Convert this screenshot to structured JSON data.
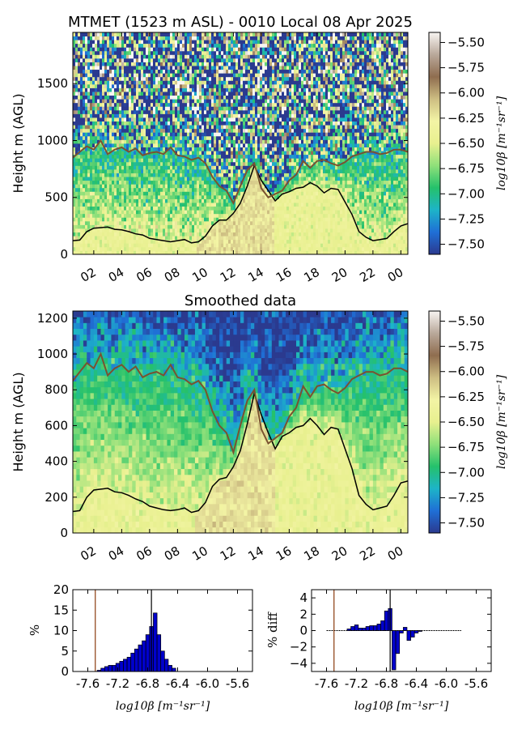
{
  "colors": {
    "colormap": [
      "#2b3a8f",
      "#1f6fd6",
      "#1db4c8",
      "#25c16b",
      "#8fe07a",
      "#e8f08f",
      "#f3f4a5",
      "#cdbd82",
      "#8f6d4f",
      "#b9a89a",
      "#f8f5f2"
    ],
    "mixing_line": "#7a5230",
    "boundary_line": "#000000",
    "hist_fill": "#0000cc",
    "hist_edge": "#000000",
    "marker_brown": "#8b3a0e",
    "marker_black": "#000000"
  },
  "chart_data": [
    {
      "type": "heatmap",
      "title": "MTMET (1523 m ASL) - 0010 Local 08 Apr 2025",
      "ylabel": "Height m (AGL)",
      "xticks": [
        "02",
        "04",
        "06",
        "08",
        "10",
        "12",
        "14",
        "16",
        "18",
        "20",
        "22",
        "00"
      ],
      "xlim": [
        0.5,
        24.5
      ],
      "ylim": [
        0,
        1950
      ],
      "yticks": [
        "0",
        "500",
        "1000",
        "1500"
      ],
      "colorbar_label": "log10β [m⁻¹sr⁻¹]",
      "colorbar_ticks": [
        "−5.50",
        "−5.75",
        "−6.00",
        "−6.25",
        "−6.50",
        "−6.75",
        "−7.00",
        "−7.25",
        "−7.50"
      ],
      "clim": [
        -7.6,
        -5.4
      ],
      "series": [
        {
          "hours": [
            0.5,
            1.0,
            1.5,
            2.0,
            2.5,
            3.0,
            3.5,
            4.0,
            4.5,
            5.0,
            5.5,
            6.0,
            6.5,
            7.0,
            7.5,
            8.0,
            8.5,
            9.0,
            9.5,
            10.0,
            10.5,
            11.0,
            11.5,
            12.0,
            12.5,
            13.0,
            13.5,
            14.0,
            14.5,
            15.0,
            15.5,
            16.0,
            16.5,
            17.0,
            17.5,
            18.0,
            18.5,
            19.0,
            19.5,
            20.0,
            20.5,
            21.0,
            21.5,
            22.0,
            22.5,
            23.0,
            23.5,
            24.0,
            24.5
          ],
          "values": [
            120,
            125,
            200,
            230,
            235,
            240,
            220,
            215,
            200,
            180,
            170,
            140,
            130,
            120,
            110,
            120,
            130,
            100,
            110,
            160,
            250,
            300,
            300,
            360,
            450,
            600,
            780,
            650,
            560,
            470,
            530,
            550,
            580,
            590,
            630,
            600,
            540,
            580,
            570,
            460,
            350,
            200,
            150,
            120,
            130,
            140,
            200,
            250,
            270
          ]
        },
        {
          "hours": [
            0.5,
            1.0,
            1.5,
            2.0,
            2.5,
            3.0,
            3.5,
            4.0,
            4.5,
            5.0,
            5.5,
            6.0,
            6.5,
            7.0,
            7.5,
            8.0,
            8.5,
            9.0,
            9.5,
            10.0,
            10.5,
            11.0,
            11.5,
            12.0,
            12.5,
            13.0,
            13.5,
            14.0,
            14.5,
            15.0,
            15.5,
            16.0,
            16.5,
            17.0,
            17.5,
            18.0,
            18.5,
            19.0,
            19.5,
            20.0,
            20.5,
            21.0,
            21.5,
            22.0,
            22.5,
            23.0,
            23.5,
            24.0,
            24.5
          ],
          "values": [
            850,
            900,
            950,
            920,
            1000,
            880,
            920,
            940,
            900,
            930,
            870,
            890,
            900,
            880,
            940,
            870,
            860,
            830,
            850,
            800,
            680,
            600,
            560,
            450,
            600,
            740,
            800,
            580,
            500,
            530,
            560,
            650,
            700,
            820,
            760,
            820,
            830,
            800,
            780,
            810,
            860,
            880,
            900,
            900,
            880,
            890,
            920,
            920,
            900
          ]
        }
      ]
    },
    {
      "type": "heatmap",
      "title": "Smoothed data",
      "ylabel": "Height m (AGL)",
      "xticks": [
        "02",
        "04",
        "06",
        "08",
        "10",
        "12",
        "14",
        "16",
        "18",
        "20",
        "22",
        "00"
      ],
      "xlim": [
        0.5,
        24.5
      ],
      "ylim": [
        0,
        1240
      ],
      "yticks": [
        "0",
        "200",
        "400",
        "600",
        "800",
        "1000",
        "1200"
      ],
      "colorbar_label": "log10β [m⁻¹sr⁻¹]",
      "colorbar_ticks": [
        "−5.50",
        "−5.75",
        "−6.00",
        "−6.25",
        "−6.50",
        "−6.75",
        "−7.00",
        "−7.25",
        "−7.50"
      ],
      "clim": [
        -7.6,
        -5.4
      ],
      "series": [
        {
          "hours": [
            0.5,
            1.0,
            1.5,
            2.0,
            2.5,
            3.0,
            3.5,
            4.0,
            4.5,
            5.0,
            5.5,
            6.0,
            6.5,
            7.0,
            7.5,
            8.0,
            8.5,
            9.0,
            9.5,
            10.0,
            10.5,
            11.0,
            11.5,
            12.0,
            12.5,
            13.0,
            13.5,
            14.0,
            14.5,
            15.0,
            15.5,
            16.0,
            16.5,
            17.0,
            17.5,
            18.0,
            18.5,
            19.0,
            19.5,
            20.0,
            20.5,
            21.0,
            21.5,
            22.0,
            22.5,
            23.0,
            23.5,
            24.0,
            24.5
          ],
          "values": [
            120,
            125,
            200,
            240,
            245,
            250,
            230,
            225,
            210,
            190,
            175,
            150,
            140,
            130,
            125,
            130,
            140,
            115,
            125,
            170,
            260,
            300,
            310,
            370,
            460,
            610,
            780,
            660,
            560,
            470,
            540,
            560,
            590,
            600,
            640,
            600,
            550,
            590,
            580,
            470,
            360,
            210,
            160,
            130,
            140,
            150,
            210,
            280,
            290
          ]
        },
        {
          "hours": [
            0.5,
            1.0,
            1.5,
            2.0,
            2.5,
            3.0,
            3.5,
            4.0,
            4.5,
            5.0,
            5.5,
            6.0,
            6.5,
            7.0,
            7.5,
            8.0,
            8.5,
            9.0,
            9.5,
            10.0,
            10.5,
            11.0,
            11.5,
            12.0,
            12.5,
            13.0,
            13.5,
            14.0,
            14.5,
            15.0,
            15.5,
            16.0,
            16.5,
            17.0,
            17.5,
            18.0,
            18.5,
            19.0,
            19.5,
            20.0,
            20.5,
            21.0,
            21.5,
            22.0,
            22.5,
            23.0,
            23.5,
            24.0,
            24.5
          ],
          "values": [
            850,
            900,
            950,
            920,
            1000,
            880,
            920,
            940,
            900,
            930,
            870,
            890,
            900,
            880,
            940,
            870,
            860,
            830,
            850,
            800,
            680,
            600,
            560,
            450,
            600,
            740,
            800,
            580,
            500,
            530,
            560,
            650,
            700,
            820,
            760,
            820,
            830,
            800,
            780,
            810,
            860,
            880,
            900,
            900,
            880,
            890,
            920,
            920,
            900
          ]
        }
      ]
    },
    {
      "type": "bar",
      "title": "",
      "ylabel": "%",
      "xlabel": "log10β [m⁻¹sr⁻¹]",
      "xlim": [
        -7.8,
        -5.4
      ],
      "ylim": [
        0,
        20
      ],
      "xticks": [
        "-7.6",
        "-7.2",
        "-6.8",
        "-6.4",
        "-6.0",
        "-5.6"
      ],
      "yticks": [
        "0",
        "5",
        "10",
        "15",
        "20"
      ],
      "bin_centers": [
        -7.45,
        -7.4,
        -7.35,
        -7.3,
        -7.25,
        -7.2,
        -7.15,
        -7.1,
        -7.05,
        -7.0,
        -6.95,
        -6.9,
        -6.85,
        -6.8,
        -6.75,
        -6.7,
        -6.65,
        -6.6,
        -6.55,
        -6.5,
        -6.45
      ],
      "values": [
        0.3,
        0.8,
        1.2,
        1.5,
        1.5,
        2.0,
        2.5,
        3.0,
        3.5,
        4.5,
        5.5,
        6.5,
        7.5,
        9.0,
        11.0,
        14.3,
        9.0,
        5.0,
        3.0,
        1.5,
        0.8
      ],
      "markers": [
        -7.5,
        -6.75
      ]
    },
    {
      "type": "bar",
      "title": "",
      "ylabel": "% diff",
      "xlabel": "log10β [m⁻¹sr⁻¹]",
      "xlim": [
        -7.8,
        -5.4
      ],
      "ylim": [
        -5,
        5
      ],
      "xticks": [
        "-7.6",
        "-7.2",
        "-6.8",
        "-6.4",
        "-6.0",
        "-5.6"
      ],
      "yticks": [
        "4",
        "2",
        "0",
        "−2",
        "−4"
      ],
      "bin_centers": [
        -7.3,
        -7.25,
        -7.2,
        -7.15,
        -7.1,
        -7.05,
        -7.0,
        -6.95,
        -6.9,
        -6.85,
        -6.8,
        -6.75,
        -6.7,
        -6.65,
        -6.6,
        -6.55,
        -6.5,
        -6.45,
        -6.4,
        -6.35
      ],
      "values": [
        0.2,
        0.5,
        0.7,
        0.3,
        0.3,
        0.5,
        0.6,
        0.6,
        0.8,
        1.2,
        2.4,
        2.7,
        -4.8,
        -2.8,
        -0.3,
        0.4,
        -1.2,
        -0.8,
        -0.3,
        -0.1
      ],
      "markers": [
        -7.5,
        -6.75
      ]
    }
  ]
}
